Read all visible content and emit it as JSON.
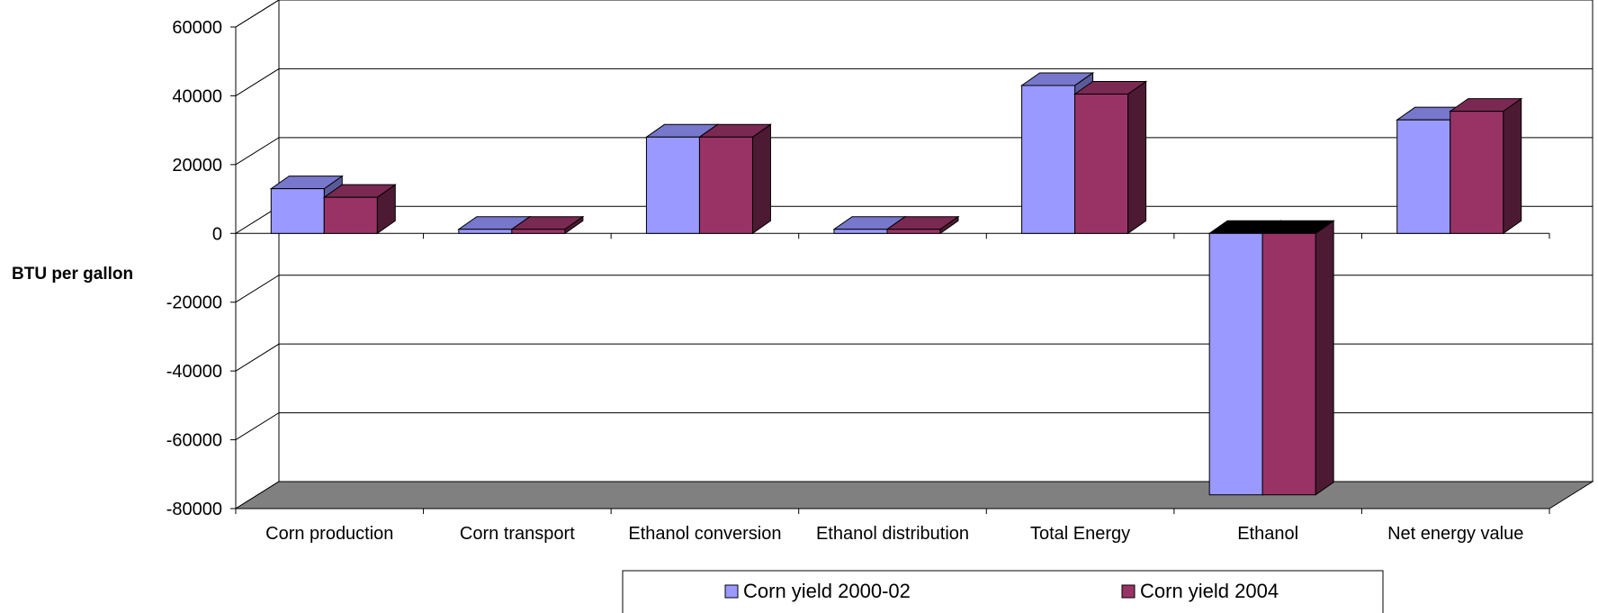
{
  "chart_data": {
    "type": "bar",
    "title": "",
    "xlabel": "",
    "ylabel": "BTU per gallon",
    "ylim": [
      -80000,
      60000
    ],
    "yticks": [
      60000,
      40000,
      20000,
      0,
      -20000,
      -40000,
      -60000,
      -80000
    ],
    "grid": true,
    "legend_position": "bottom",
    "categories": [
      "Corn production",
      "Corn transport",
      "Ethanol conversion",
      "Ethanol distribution",
      "Total Energy",
      "Ethanol",
      "Net energy value"
    ],
    "series": [
      {
        "name": "Corn yield 2000-02",
        "values": [
          13000,
          1200,
          28000,
          1200,
          43000,
          -76000,
          33000
        ]
      },
      {
        "name": "Corn yield 2004",
        "values": [
          10500,
          1200,
          28000,
          1200,
          40500,
          -76000,
          35500
        ]
      }
    ],
    "colors": {
      "series1_front": "#9999ff",
      "series1_side": "#5a5a99",
      "series1_top": "#7777cc",
      "series2_front": "#993366",
      "series2_side": "#4d1a33",
      "series2_top": "#7a2952",
      "floor": "#808080",
      "gridline": "#000000"
    }
  }
}
